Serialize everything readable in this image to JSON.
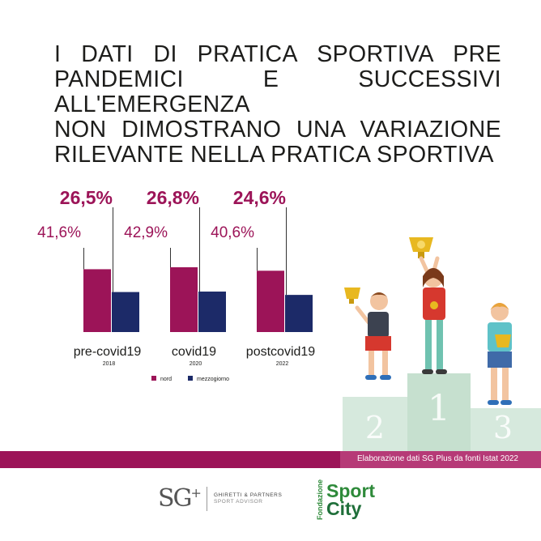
{
  "headline": {
    "line1": "I DATI DI PRATICA SPORTIVA PRE",
    "line2": "PANDEMICI E SUCCESSIVI ALL'EMERGENZA",
    "line3": "NON DIMOSTRANO UNA VARIAZIONE",
    "line4": "RILEVANTE NELLA PRATICA SPORTIVA"
  },
  "chart_data": {
    "type": "bar",
    "categories": [
      "pre-covid19",
      "covid19",
      "postcovid19"
    ],
    "category_years": [
      "2018",
      "2020",
      "2022"
    ],
    "series": [
      {
        "name": "nord",
        "values": [
          41.6,
          42.9,
          40.6
        ],
        "labels": [
          "41,6%",
          "42,9%",
          "40,6%"
        ],
        "color": "#9c1458"
      },
      {
        "name": "mezzogiorno",
        "values": [
          26.5,
          26.8,
          24.6
        ],
        "labels": [
          "26,5%",
          "26,8%",
          "24,6%"
        ],
        "color": "#1c2a68"
      }
    ],
    "legend": [
      "nord",
      "mezzogiorno"
    ],
    "legend_position": "bottom",
    "ylim": [
      0,
      100
    ]
  },
  "colors": {
    "accent": "#9c1458",
    "navy": "#1c2a68",
    "footer": "#9c1458",
    "podium": "#d6e9dd"
  },
  "podium": {
    "first": "1",
    "second": "2",
    "third": "3"
  },
  "footer": {
    "source": "Elaborazione dati SG Plus da fonti Istat 2022"
  },
  "logos": {
    "sg_mark": "SG",
    "sg_plus": "+",
    "sg_name": "GHIRETTI & PARTNERS",
    "sg_sub": "SPORT ADVISOR",
    "fsc_vertical": "Fondazione",
    "fsc_sport": "Sport",
    "fsc_city": "City"
  }
}
